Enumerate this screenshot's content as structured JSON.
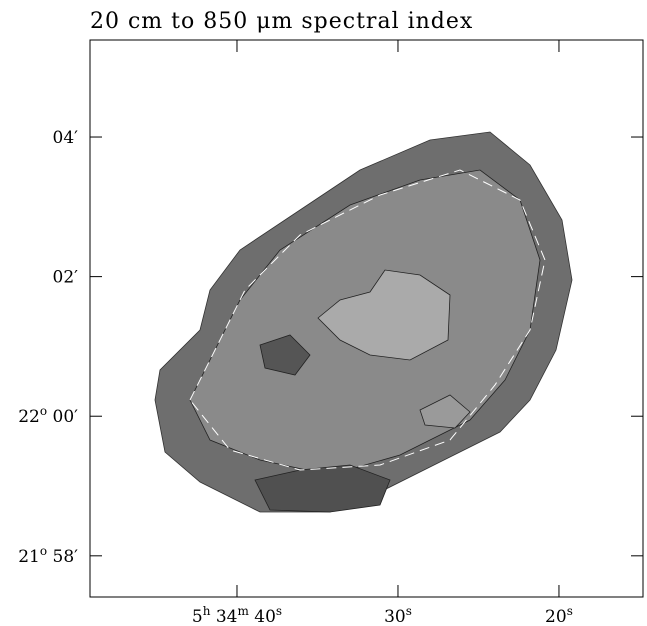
{
  "chart_data": {
    "type": "image",
    "title": "20 cm to 850 μm spectral index",
    "xlim": [
      49.13,
      14.78
    ],
    "xticks": [
      {
        "value": 40,
        "label": [
          "5",
          "h",
          " 34",
          "m",
          " 40",
          "s"
        ]
      },
      {
        "value": 30,
        "label": [
          "30",
          "s"
        ]
      },
      {
        "value": 20,
        "label": [
          "20",
          "s"
        ]
      }
    ],
    "ylim": [
      1317.41,
      1325.39
    ],
    "yticks": [
      {
        "value": 1324,
        "label": [
          "04′"
        ]
      },
      {
        "value": 1322,
        "label": [
          "02′"
        ]
      },
      {
        "value": 1320,
        "label": [
          "22",
          "o",
          " 00′"
        ]
      },
      {
        "value": 1318,
        "label": [
          "21",
          "o",
          " 58′"
        ]
      }
    ]
  }
}
